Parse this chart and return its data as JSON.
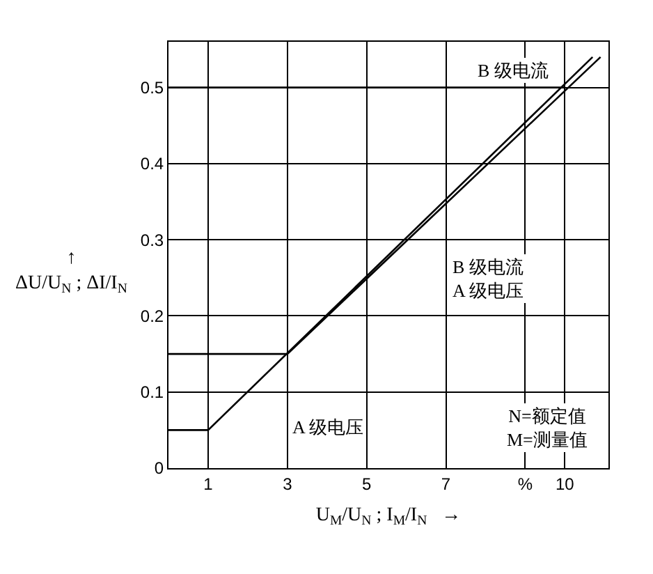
{
  "chart_data": {
    "type": "line",
    "xlabel": "U$_{M}$/U$_{N}$ ; I$_{M}$/I$_{N}$   →",
    "ylabel": "↑\nΔU/U$_{N}$ ; ΔI/I$_{N}$",
    "series": [
      {
        "color": "#000000",
        "x": [
          0,
          1,
          10.7
        ],
        "values": [
          0.05,
          0.05,
          0.54
        ]
      },
      {
        "color": "#000000",
        "x": [
          0,
          3,
          10.9
        ],
        "values": [
          0.15,
          0.15,
          0.54
        ]
      },
      {
        "color": "#000000",
        "x": [
          0,
          10
        ],
        "values": [
          0.5,
          0.5
        ]
      }
    ],
    "xlim": [
      0,
      11.1
    ],
    "xticks": [
      1,
      3,
      5,
      7,
      {
        "value": 9,
        "label": "%"
      },
      10
    ],
    "ylim": [
      0,
      0.56
    ],
    "yticks": [
      0,
      0.1,
      0.2,
      0.3,
      0.4,
      0.5
    ],
    "grid": true,
    "line_style": "solid",
    "annotations": [
      "B 级电流",
      "B 级电流\nA 级电压",
      "A 级电压",
      "N=额定值\nM=测量值"
    ]
  }
}
